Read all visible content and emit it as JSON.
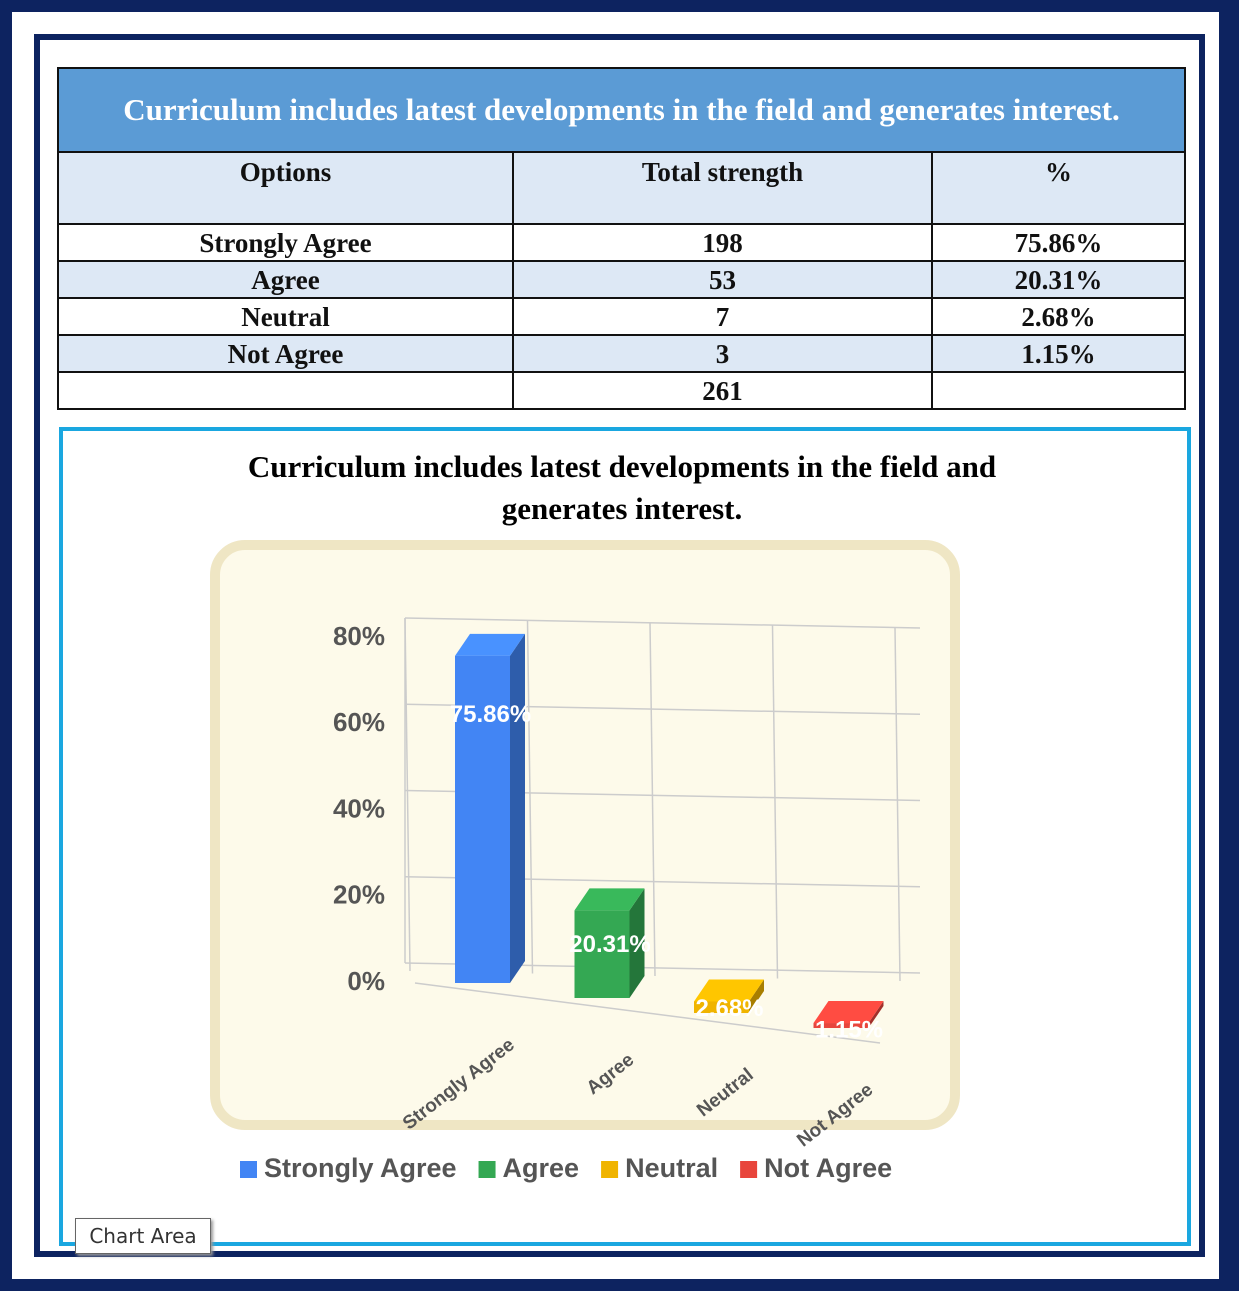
{
  "table": {
    "title": "Curriculum includes latest developments in the field and generates interest.",
    "header": [
      "Options",
      "Total strength",
      "%"
    ],
    "rows": [
      [
        "Strongly Agree",
        "198",
        "75.86%"
      ],
      [
        "Agree",
        "53",
        "20.31%"
      ],
      [
        "Neutral",
        "7",
        "2.68%"
      ],
      [
        "Not Agree",
        "3",
        "1.15%"
      ]
    ],
    "total": "261"
  },
  "chart_data": {
    "type": "bar3d",
    "title": "Curriculum includes latest developments in the field and generates interest.",
    "categories": [
      "Strongly Agree",
      "Agree",
      "Neutral",
      "Not Agree"
    ],
    "values": [
      75.86,
      20.31,
      2.68,
      1.15
    ],
    "value_labels": [
      "75.86%",
      "20.31%",
      "2.68%",
      "1.15%"
    ],
    "colors": [
      "#4285f4",
      "#34a853",
      "#f0b400",
      "#e8453c"
    ],
    "ylim": [
      0,
      80
    ],
    "yticks": [
      {
        "value": 0,
        "label": "0%"
      },
      {
        "value": 20,
        "label": "20%"
      },
      {
        "value": 40,
        "label": "40%"
      },
      {
        "value": 60,
        "label": "60%"
      },
      {
        "value": 80,
        "label": "80%"
      }
    ],
    "grid": true
  },
  "tooltip": "Chart Area"
}
